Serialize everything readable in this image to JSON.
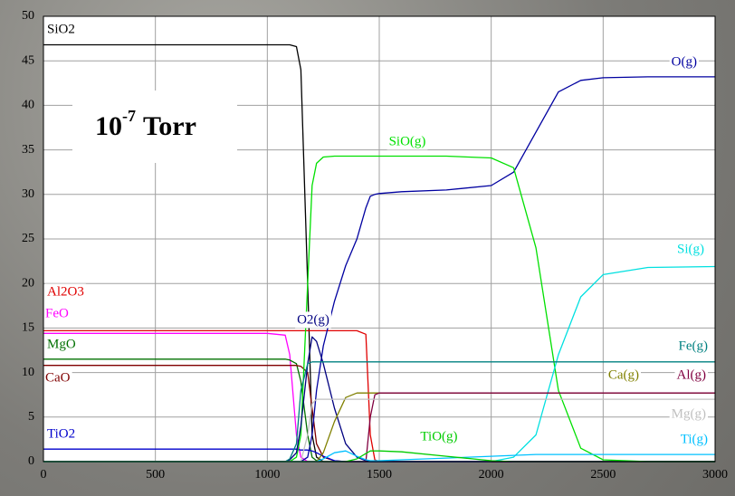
{
  "chart_data": {
    "type": "line",
    "annotation": {
      "base": "10",
      "exponent": "-7",
      "unit": "Torr"
    },
    "x": [
      0,
      1000,
      1080,
      1100,
      1130,
      1150,
      1180,
      1200,
      1220,
      1250,
      1300,
      1350,
      1400,
      1440,
      1460,
      1480,
      1500,
      1600,
      1800,
      2000,
      2100,
      2200,
      2300,
      2400,
      2500,
      2700,
      3000
    ],
    "series": [
      {
        "name": "SiO2",
        "color": "#000000",
        "values": [
          46.8,
          46.8,
          46.8,
          46.8,
          46.6,
          44,
          20,
          3,
          0.5,
          0,
          0,
          0,
          0,
          0,
          0,
          0,
          0,
          0,
          0,
          0,
          0,
          0,
          0,
          0,
          0,
          0,
          0
        ]
      },
      {
        "name": "Al2O3",
        "color": "#e00000",
        "values": [
          14.7,
          14.7,
          14.7,
          14.7,
          14.7,
          14.7,
          14.7,
          14.7,
          14.7,
          14.7,
          14.7,
          14.7,
          14.7,
          14.3,
          3,
          0.2,
          0,
          0,
          0,
          0,
          0,
          0,
          0,
          0,
          0,
          0,
          0
        ]
      },
      {
        "name": "FeO",
        "color": "#ff00ff",
        "values": [
          14.4,
          14.4,
          14.2,
          12,
          3,
          0.5,
          0,
          0,
          0,
          0,
          0,
          0,
          0,
          0,
          0,
          0,
          0,
          0,
          0,
          0,
          0,
          0,
          0,
          0,
          0,
          0,
          0
        ]
      },
      {
        "name": "MgO",
        "color": "#007000",
        "values": [
          11.5,
          11.5,
          11.5,
          11.4,
          11,
          9,
          3,
          0.5,
          0.1,
          0,
          0,
          0,
          0,
          0,
          0,
          0,
          0,
          0,
          0,
          0,
          0,
          0,
          0,
          0,
          0,
          0,
          0
        ]
      },
      {
        "name": "CaO",
        "color": "#800000",
        "values": [
          10.8,
          10.8,
          10.8,
          10.8,
          10.8,
          10.7,
          10,
          6,
          2,
          0.5,
          0.1,
          0,
          0,
          0,
          0,
          0,
          0,
          0,
          0,
          0,
          0,
          0,
          0,
          0,
          0,
          0,
          0
        ]
      },
      {
        "name": "TiO2",
        "color": "#0000cc",
        "values": [
          1.4,
          1.4,
          1.4,
          1.4,
          1.4,
          1.3,
          1.3,
          1.2,
          1,
          0.6,
          0.1,
          0,
          0,
          0,
          0,
          0,
          0,
          0,
          0,
          0,
          0,
          0,
          0,
          0,
          0,
          0,
          0
        ]
      },
      {
        "name": "O(g)",
        "color": "#0000a0",
        "values": [
          0,
          0,
          0,
          0,
          0,
          0,
          0.5,
          3,
          8,
          13,
          18,
          22,
          25,
          28.5,
          29.8,
          30,
          30.1,
          30.3,
          30.5,
          31,
          32.5,
          37,
          41.5,
          42.8,
          43.1,
          43.2,
          43.2
        ]
      },
      {
        "name": "SiO(g)",
        "color": "#00e000",
        "values": [
          0,
          0,
          0,
          0,
          0.5,
          3,
          20,
          31,
          33.5,
          34.2,
          34.3,
          34.3,
          34.3,
          34.3,
          34.3,
          34.3,
          34.3,
          34.3,
          34.3,
          34.1,
          33,
          24,
          8,
          1.5,
          0.2,
          0,
          0
        ]
      },
      {
        "name": "Si(g)",
        "color": "#00e0e0",
        "values": [
          0,
          0,
          0,
          0,
          0,
          0,
          0,
          0,
          0,
          0,
          0,
          0,
          0,
          0,
          0,
          0,
          0,
          0,
          0,
          0,
          0.5,
          3,
          12,
          18.5,
          21,
          21.8,
          21.9
        ]
      },
      {
        "name": "O2(g)",
        "color": "#000080",
        "values": [
          0,
          0,
          0,
          0.2,
          1,
          4,
          11,
          14,
          13.5,
          11,
          6,
          2,
          0.5,
          0.1,
          0,
          0,
          0,
          0,
          0,
          0,
          0,
          0,
          0,
          0,
          0,
          0,
          0
        ]
      },
      {
        "name": "Fe(g)",
        "color": "#008080",
        "values": [
          0,
          0,
          0,
          0.3,
          2,
          8,
          11,
          11.2,
          11.2,
          11.2,
          11.2,
          11.2,
          11.2,
          11.2,
          11.2,
          11.2,
          11.2,
          11.2,
          11.2,
          11.2,
          11.2,
          11.2,
          11.2,
          11.2,
          11.2,
          11.2,
          11.2
        ]
      },
      {
        "name": "Ca(g)",
        "color": "#808000",
        "values": [
          0,
          0,
          0,
          0,
          0,
          0,
          0,
          0,
          0,
          1,
          4.5,
          7.2,
          7.7,
          7.7,
          7.7,
          7.7,
          7.7,
          7.7,
          7.7,
          7.7,
          7.7,
          7.7,
          7.7,
          7.7,
          7.7,
          7.7,
          7.7
        ]
      },
      {
        "name": "Al(g)",
        "color": "#800040",
        "values": [
          0,
          0,
          0,
          0,
          0,
          0,
          0,
          0,
          0,
          0,
          0,
          0,
          0,
          0,
          5,
          7.5,
          7.7,
          7.7,
          7.7,
          7.7,
          7.7,
          7.7,
          7.7,
          7.7,
          7.7,
          7.7,
          7.7
        ]
      },
      {
        "name": "Mg(g)",
        "color": "#c0c0c0",
        "values": [
          0,
          0,
          0,
          0,
          0,
          0,
          3,
          6.5,
          7,
          7,
          7,
          7,
          7,
          7,
          7,
          7,
          7,
          7,
          7,
          7,
          7,
          7,
          7,
          7,
          7,
          7,
          7
        ]
      },
      {
        "name": "Ti(g)",
        "color": "#00c0ff",
        "values": [
          0,
          0,
          0,
          0,
          0,
          0,
          0,
          0,
          0,
          0.3,
          1,
          1.2,
          0.6,
          0.2,
          0.1,
          0.1,
          0.1,
          0.2,
          0.4,
          0.6,
          0.7,
          0.8,
          0.8,
          0.8,
          0.8,
          0.8,
          0.8
        ]
      },
      {
        "name": "TiO(g)",
        "color": "#00cc00",
        "values": [
          0,
          0,
          0,
          0,
          0,
          0,
          0,
          0,
          0,
          0,
          0,
          0,
          0.3,
          0.9,
          1.2,
          1.2,
          1.2,
          1.1,
          0.6,
          0.1,
          0,
          0,
          0,
          0,
          0,
          0,
          0
        ]
      }
    ],
    "xlim": [
      0,
      3000
    ],
    "xticks": [
      0,
      500,
      1000,
      1500,
      2000,
      2500,
      3000
    ],
    "ylim": [
      0,
      50
    ],
    "yticks": [
      0,
      5,
      10,
      15,
      20,
      25,
      30,
      35,
      40,
      45,
      50
    ],
    "grid": true
  }
}
